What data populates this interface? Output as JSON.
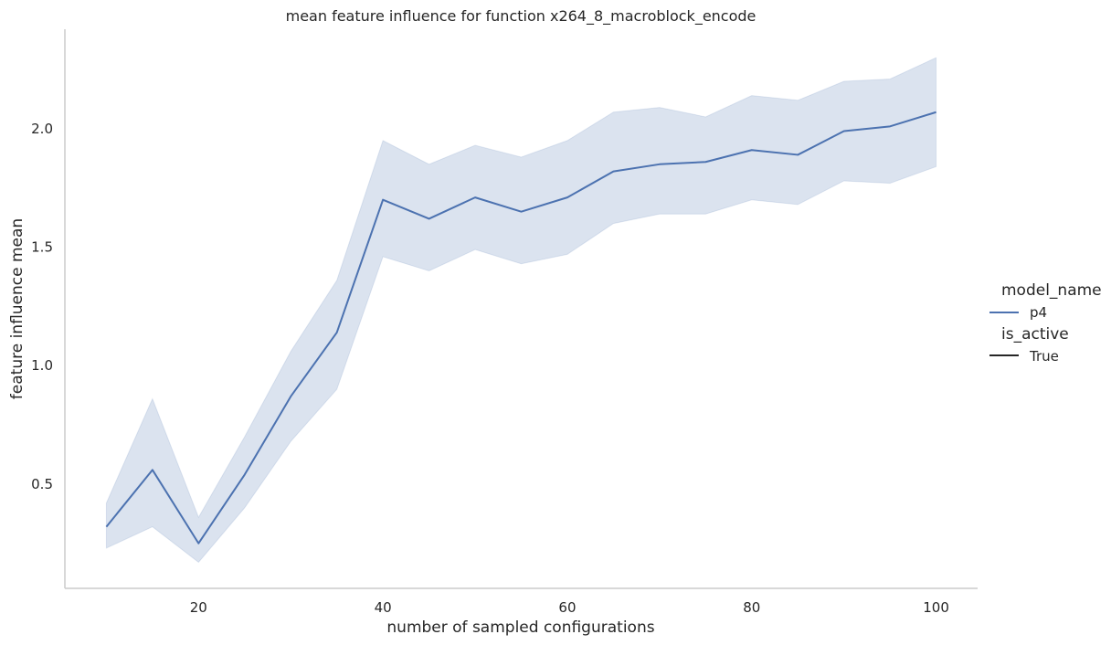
{
  "colors": {
    "series": "#4c72b0",
    "band": "#4c72b0",
    "axis": "#cccccc",
    "text": "#262626",
    "style_line": "#262626"
  },
  "chart_data": {
    "type": "line",
    "title": "mean feature influence for function x264_8_macroblock_encode",
    "xlabel": "number of sampled configurations",
    "ylabel": "feature influence mean",
    "xlim": [
      5.5,
      104.5
    ],
    "ylim": [
      0.06,
      2.42
    ],
    "xticks": [
      20,
      40,
      60,
      80,
      100
    ],
    "yticks": [
      0.5,
      1.0,
      1.5,
      2.0
    ],
    "xtick_labels": [
      "20",
      "40",
      "60",
      "80",
      "100"
    ],
    "ytick_labels": [
      "0.5",
      "1.0",
      "1.5",
      "2.0"
    ],
    "grid": false,
    "legend_position": "right",
    "legend": {
      "hue_title": "model_name",
      "hue_entries": [
        "p4"
      ],
      "style_title": "is_active",
      "style_entries": [
        "True"
      ]
    },
    "x": [
      10,
      15,
      20,
      25,
      30,
      35,
      40,
      45,
      50,
      55,
      60,
      65,
      70,
      75,
      80,
      85,
      90,
      95,
      100
    ],
    "series": [
      {
        "name": "p4",
        "values": [
          0.32,
          0.56,
          0.25,
          0.54,
          0.87,
          1.14,
          1.7,
          1.62,
          1.71,
          1.65,
          1.71,
          1.82,
          1.85,
          1.86,
          1.91,
          1.89,
          1.99,
          2.01,
          2.07
        ],
        "ci_lower": [
          0.23,
          0.32,
          0.17,
          0.4,
          0.68,
          0.9,
          1.46,
          1.4,
          1.49,
          1.43,
          1.47,
          1.6,
          1.64,
          1.64,
          1.7,
          1.68,
          1.78,
          1.77,
          1.84
        ],
        "ci_upper": [
          0.42,
          0.86,
          0.36,
          0.7,
          1.06,
          1.36,
          1.95,
          1.85,
          1.93,
          1.88,
          1.95,
          2.07,
          2.09,
          2.05,
          2.14,
          2.12,
          2.2,
          2.21,
          2.3
        ]
      }
    ]
  }
}
